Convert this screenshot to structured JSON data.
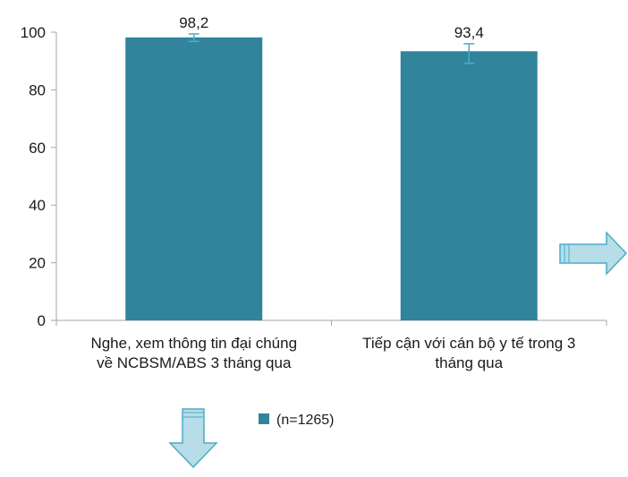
{
  "chart_data": {
    "type": "bar",
    "categories": [
      [
        "Nghe, xem thông tin đại chúng",
        "về NCBSM/ABS 3 tháng qua"
      ],
      [
        "Tiếp cận với cán bộ y tế trong 3",
        "tháng qua"
      ]
    ],
    "series": [
      {
        "name": "(n=1265)",
        "values": [
          98.2,
          93.4
        ],
        "value_labels": [
          "98,2",
          "93,4"
        ],
        "error_bars": [
          [
            96.8,
            99.4
          ],
          [
            89.2,
            96.0
          ]
        ],
        "color": "#31849b"
      }
    ],
    "y_ticks": [
      0,
      20,
      40,
      60,
      80,
      100
    ],
    "ylim": [
      0,
      100
    ],
    "grid": false,
    "legend_position": "bottom",
    "title": "",
    "xlabel": "",
    "ylabel": ""
  },
  "decorations": {
    "arrow_right": {
      "icon": "right-arrow-icon",
      "fill": "#b7dde8",
      "stroke": "#4bacc6"
    },
    "arrow_down": {
      "icon": "down-arrow-icon",
      "fill": "#b7dde8",
      "stroke": "#4bacc6"
    }
  },
  "colors": {
    "axis": "#a6a6a6",
    "error_bar": "#4bacc6"
  }
}
